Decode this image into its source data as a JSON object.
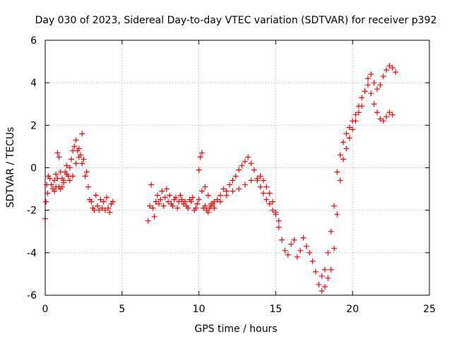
{
  "chart_data": {
    "type": "scatter",
    "title": "Day 030 of 2023, Sidereal Day-to-day VTEC variation (SDTVAR) for receiver p392",
    "xlabel": "GPS time / hours",
    "ylabel": "SDTVAR / TECUs",
    "xlim": [
      0,
      25
    ],
    "ylim": [
      -6,
      6
    ],
    "xticks": [
      0,
      5,
      10,
      15,
      20,
      25
    ],
    "yticks": [
      -6,
      -4,
      -2,
      0,
      2,
      4,
      6
    ],
    "grid": true,
    "marker": "plus",
    "series": [
      {
        "name": "SDTVAR",
        "color": "#ff0000",
        "x": [
          0.0,
          0.05,
          0.1,
          0.15,
          0.2,
          0.3,
          0.4,
          0.5,
          0.6,
          0.7,
          0.8,
          0.9,
          1.0,
          1.1,
          1.2,
          1.3,
          1.4,
          1.5,
          1.6,
          1.7,
          1.8,
          1.9,
          2.0,
          2.1,
          2.2,
          2.3,
          2.4,
          2.5,
          2.6,
          2.7,
          2.8,
          2.9,
          3.0,
          3.1,
          3.2,
          3.3,
          3.4,
          3.5,
          3.6,
          3.7,
          3.8,
          3.9,
          4.0,
          4.1,
          4.2,
          4.3,
          4.4,
          0.6,
          0.7,
          0.8,
          0.9,
          1.0,
          1.1,
          1.2,
          1.4,
          1.6,
          1.8,
          2.0,
          2.2,
          2.4,
          6.7,
          6.8,
          6.9,
          7.0,
          7.1,
          7.2,
          7.3,
          7.4,
          7.5,
          7.6,
          7.7,
          7.8,
          7.9,
          8.0,
          8.1,
          8.2,
          8.3,
          8.4,
          8.5,
          8.6,
          8.7,
          8.8,
          8.9,
          9.0,
          9.1,
          9.2,
          9.3,
          9.4,
          9.5,
          9.6,
          9.7,
          9.8,
          9.9,
          10.0,
          10.1,
          10.2,
          10.3,
          10.4,
          10.5,
          10.6,
          10.7,
          10.8,
          10.9,
          11.0,
          11.2,
          11.4,
          11.6,
          11.8,
          12.0,
          12.2,
          12.4,
          12.6,
          12.8,
          13.0,
          13.2,
          13.4,
          13.6,
          13.8,
          14.0,
          14.2,
          14.4,
          14.6,
          14.8,
          15.0,
          15.2,
          15.4,
          15.6,
          15.8,
          16.0,
          16.2,
          16.4,
          16.6,
          16.8,
          17.0,
          17.2,
          17.4,
          17.6,
          17.8,
          18.0,
          18.2,
          18.4,
          18.6,
          18.8,
          19.0,
          19.2,
          19.4,
          19.6,
          19.8,
          20.0,
          20.2,
          20.4,
          20.6,
          20.8,
          21.0,
          21.2,
          21.4,
          21.6,
          21.8,
          22.0,
          22.2,
          22.4,
          22.6,
          22.8,
          10.0,
          10.2,
          10.4,
          10.6,
          10.8,
          11.0,
          11.4,
          11.8,
          12.2,
          12.6,
          13.0,
          13.4,
          13.8,
          14.0,
          14.2,
          14.4,
          14.6,
          14.8,
          15.0,
          15.2,
          18.0,
          18.2,
          18.4,
          18.6,
          18.8,
          19.0,
          19.2,
          19.4,
          19.6,
          19.8,
          20.0,
          20.2,
          20.4,
          20.6,
          20.8,
          21.0,
          21.2,
          21.4,
          21.6,
          21.8,
          22.0,
          22.2,
          22.4,
          22.6
        ],
        "y": [
          -2.4,
          -1.6,
          -0.8,
          -1.2,
          -0.4,
          -0.5,
          -0.8,
          -1.0,
          -1.1,
          -0.9,
          -0.5,
          -0.9,
          -1.0,
          -0.9,
          -0.6,
          -0.2,
          0.1,
          -0.4,
          0.0,
          0.4,
          0.8,
          1.0,
          1.3,
          0.8,
          0.9,
          0.6,
          0.2,
          0.4,
          -0.4,
          -0.2,
          -0.9,
          -1.5,
          -1.6,
          -1.9,
          -2.0,
          -1.3,
          -1.8,
          -2.0,
          -1.5,
          -1.9,
          -1.6,
          -2.0,
          -1.4,
          -1.9,
          -2.1,
          -1.7,
          -1.6,
          -0.6,
          -0.3,
          0.7,
          0.5,
          -0.2,
          -0.5,
          -0.7,
          -0.3,
          -0.6,
          -0.4,
          0.2,
          0.5,
          1.6,
          -2.5,
          -1.8,
          -0.8,
          -1.9,
          -2.3,
          -1.6,
          -1.3,
          -1.7,
          -1.5,
          -1.1,
          -1.8,
          -1.4,
          -1.0,
          -1.6,
          -1.3,
          -1.7,
          -1.8,
          -1.5,
          -1.4,
          -1.9,
          -1.6,
          -1.3,
          -1.5,
          -1.7,
          -1.6,
          -1.8,
          -1.9,
          -1.5,
          -1.6,
          -1.4,
          -2.0,
          -1.9,
          -1.7,
          -0.1,
          0.5,
          0.7,
          -1.9,
          -1.8,
          -2.0,
          -2.1,
          -1.9,
          -1.8,
          -1.7,
          -1.6,
          -1.5,
          -1.3,
          -1.0,
          -1.1,
          -0.8,
          -0.6,
          -0.4,
          -0.1,
          0.1,
          0.3,
          0.5,
          0.2,
          -0.1,
          -0.6,
          -0.9,
          -1.2,
          -1.5,
          -1.7,
          -2.0,
          -2.2,
          -2.8,
          -3.4,
          -3.9,
          -4.1,
          -3.6,
          -3.4,
          -4.2,
          -3.9,
          -3.3,
          -3.7,
          -4.0,
          -4.4,
          -4.9,
          -5.5,
          -5.8,
          -5.6,
          -5.2,
          -4.8,
          -3.8,
          -2.2,
          -0.6,
          0.4,
          0.9,
          1.4,
          1.8,
          2.2,
          2.6,
          2.9,
          3.6,
          4.2,
          4.4,
          4.0,
          3.7,
          3.9,
          4.3,
          4.6,
          4.8,
          4.7,
          4.5,
          -1.5,
          -1.1,
          -0.9,
          -1.3,
          -1.7,
          -1.9,
          -1.6,
          -1.3,
          -1.1,
          -1.0,
          -0.8,
          -0.6,
          -0.5,
          -0.4,
          -0.6,
          -0.9,
          -1.2,
          -1.6,
          -2.1,
          -2.5,
          -5.1,
          -4.8,
          -4.0,
          -3.0,
          -1.8,
          -0.2,
          0.6,
          1.2,
          1.6,
          1.9,
          2.2,
          2.5,
          2.9,
          3.3,
          3.6,
          3.9,
          3.5,
          3.0,
          2.6,
          2.3,
          2.2,
          2.4,
          2.6,
          2.5
        ]
      }
    ]
  }
}
